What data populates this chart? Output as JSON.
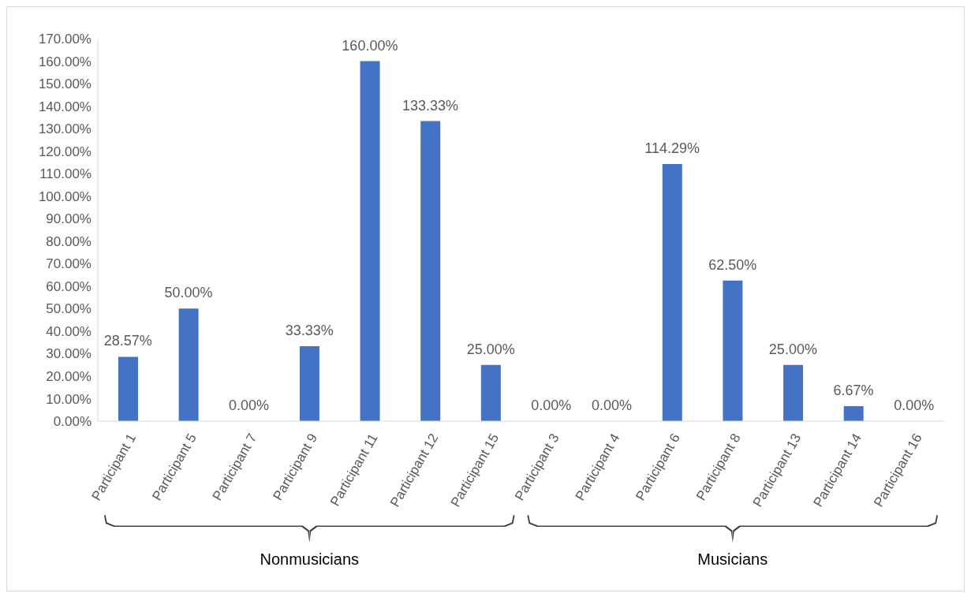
{
  "chart_data": {
    "type": "bar",
    "categories": [
      "Participant 1",
      "Participant 5",
      "Participant 7",
      "Participant 9",
      "Participant 11",
      "Participant 12",
      "Participant 15",
      "Participant 3",
      "Participant 4",
      "Participant 6",
      "Participant 8",
      "Participant 13",
      "Participant 14",
      "Participant 16"
    ],
    "values": [
      28.57,
      50,
      0,
      33.33,
      160,
      133.33,
      25,
      0,
      0,
      114.29,
      62.5,
      25,
      6.67,
      0
    ],
    "value_labels": [
      "28.57%",
      "50.00%",
      "0.00%",
      "33.33%",
      "160.00%",
      "133.33%",
      "25.00%",
      "0.00%",
      "0.00%",
      "114.29%",
      "62.50%",
      "25.00%",
      "6.67%",
      "0.00%"
    ],
    "color": "#4472c4",
    "ylim": [
      0,
      170
    ],
    "yticks": [
      {
        "value": 0,
        "label": "0.00%"
      },
      {
        "value": 10,
        "label": "10.00%"
      },
      {
        "value": 20,
        "label": "20.00%"
      },
      {
        "value": 30,
        "label": "30.00%"
      },
      {
        "value": 40,
        "label": "40.00%"
      },
      {
        "value": 50,
        "label": "50.00%"
      },
      {
        "value": 60,
        "label": "60.00%"
      },
      {
        "value": 70,
        "label": "70.00%"
      },
      {
        "value": 80,
        "label": "80.00%"
      },
      {
        "value": 90,
        "label": "90.00%"
      },
      {
        "value": 100,
        "label": "100.00%"
      },
      {
        "value": 110,
        "label": "110.00%"
      },
      {
        "value": 120,
        "label": "120.00%"
      },
      {
        "value": 130,
        "label": "130.00%"
      },
      {
        "value": 140,
        "label": "140.00%"
      },
      {
        "value": 150,
        "label": "150.00%"
      },
      {
        "value": 160,
        "label": "160.00%"
      },
      {
        "value": 170,
        "label": "170.00%"
      }
    ],
    "annotations": [
      "Nonmusicians",
      "Musicians"
    ],
    "grid": false,
    "legend": false
  }
}
